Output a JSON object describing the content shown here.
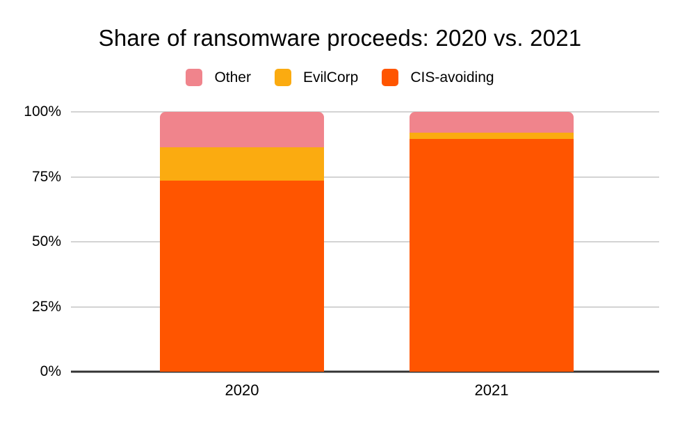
{
  "chart_data": {
    "type": "bar",
    "stacked": true,
    "percent": true,
    "title": "Share of ransomware proceeds: 2020 vs. 2021",
    "categories": [
      "2020",
      "2021"
    ],
    "series": [
      {
        "name": "CIS-avoiding",
        "color": "#ff5500",
        "values": [
          73.5,
          89.5
        ]
      },
      {
        "name": "EvilCorp",
        "color": "#fbab10",
        "values": [
          13.0,
          2.5
        ]
      },
      {
        "name": "Other",
        "color": "#f0848c",
        "values": [
          13.5,
          8.0
        ]
      }
    ],
    "legend_order": [
      "Other",
      "EvilCorp",
      "CIS-avoiding"
    ],
    "legend_position": "top",
    "grid": true,
    "ylim": [
      0,
      100
    ],
    "yticks": [
      {
        "value": 0,
        "label": "0%"
      },
      {
        "value": 25,
        "label": "25%"
      },
      {
        "value": 50,
        "label": "50%"
      },
      {
        "value": 75,
        "label": "75%"
      },
      {
        "value": 100,
        "label": "100%"
      }
    ],
    "colors": {
      "background": "#ffffff",
      "gridline": "#d3d3d3",
      "axis_line": "#333333",
      "text": "#000000"
    }
  }
}
